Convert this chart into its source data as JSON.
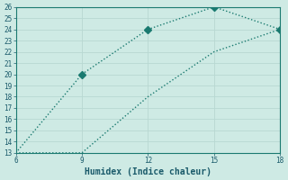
{
  "xlabel": "Humidex (Indice chaleur)",
  "x_data": [
    6,
    9,
    12,
    15,
    18
  ],
  "y_data_line1": [
    13,
    20,
    24,
    26,
    24
  ],
  "y_data_line2": [
    13,
    13,
    18,
    22,
    24
  ],
  "markers_line1_x": [
    9,
    12,
    15,
    18
  ],
  "markers_line1_y": [
    20,
    24,
    26,
    24
  ],
  "xlim": [
    6,
    18
  ],
  "ylim": [
    13,
    26
  ],
  "x_ticks": [
    6,
    9,
    12,
    15,
    18
  ],
  "y_ticks": [
    13,
    14,
    15,
    16,
    17,
    18,
    19,
    20,
    21,
    22,
    23,
    24,
    25,
    26
  ],
  "line_color": "#1a7a70",
  "bg_color": "#ceeae4",
  "grid_color": "#b8d8d2",
  "spine_color": "#1a7a70",
  "marker_size": 4,
  "line_width": 1.0,
  "tick_fontsize": 5.5,
  "xlabel_fontsize": 7,
  "font_color": "#1a5a6a"
}
